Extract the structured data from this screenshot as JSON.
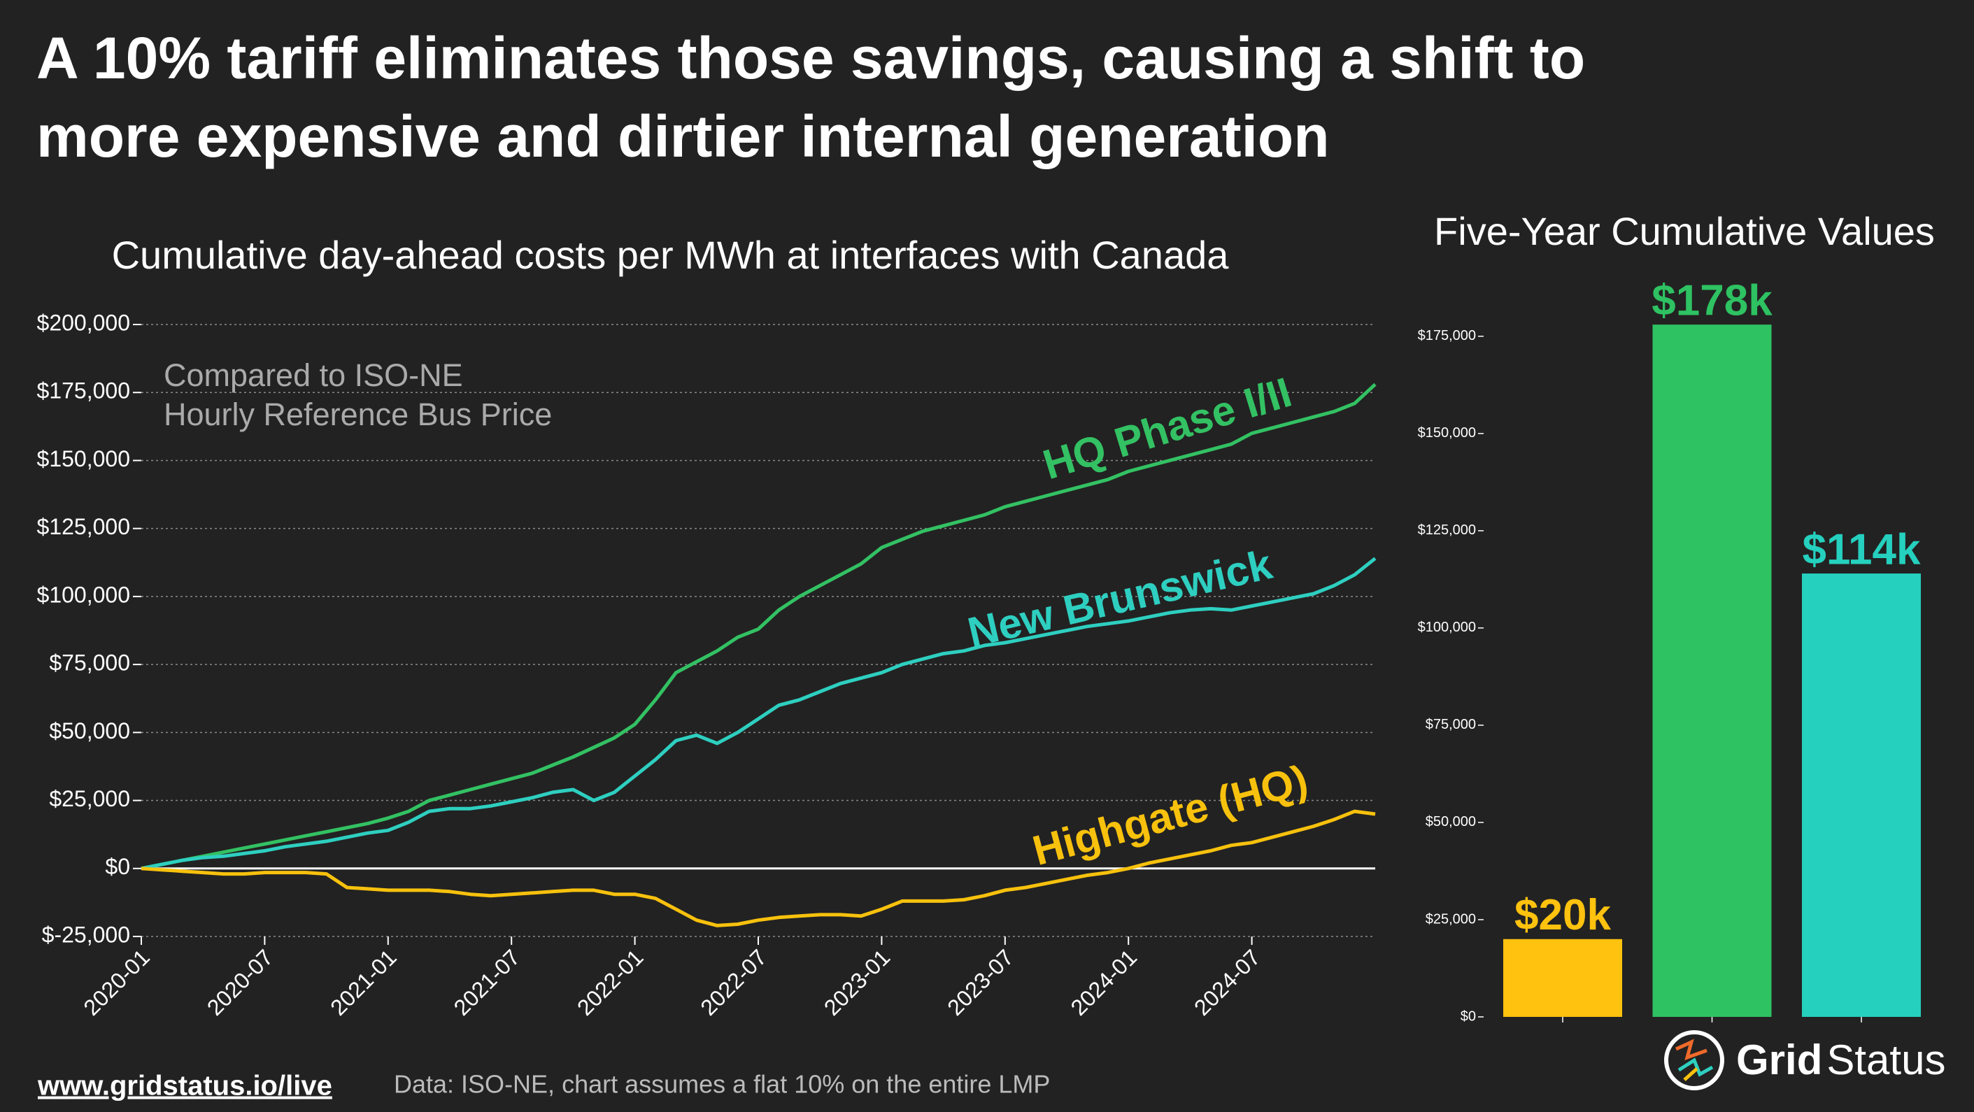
{
  "header": {
    "title": [
      "A 10% tariff eliminates those savings, causing a shift to",
      "more expensive and dirtier internal generation"
    ]
  },
  "chart_data": [
    {
      "type": "line",
      "title": "Cumulative day-ahead costs per MWh at interfaces with Canada",
      "annotation": [
        "Compared to ISO-NE",
        "Hourly Reference Bus Price"
      ],
      "x": [
        "2020-01",
        "2020-02",
        "2020-03",
        "2020-04",
        "2020-05",
        "2020-06",
        "2020-07",
        "2020-08",
        "2020-09",
        "2020-10",
        "2020-11",
        "2020-12",
        "2021-01",
        "2021-02",
        "2021-03",
        "2021-04",
        "2021-05",
        "2021-06",
        "2021-07",
        "2021-08",
        "2021-09",
        "2021-10",
        "2021-11",
        "2021-12",
        "2022-01",
        "2022-02",
        "2022-03",
        "2022-04",
        "2022-05",
        "2022-06",
        "2022-07",
        "2022-08",
        "2022-09",
        "2022-10",
        "2022-11",
        "2022-12",
        "2023-01",
        "2023-02",
        "2023-03",
        "2023-04",
        "2023-05",
        "2023-06",
        "2023-07",
        "2023-08",
        "2023-09",
        "2023-10",
        "2023-11",
        "2023-12",
        "2024-01",
        "2024-02",
        "2024-03",
        "2024-04",
        "2024-05",
        "2024-06",
        "2024-07",
        "2024-08",
        "2024-09",
        "2024-10",
        "2024-11",
        "2024-12",
        "2025-01"
      ],
      "xlim": [
        "2020-01",
        "2025-01"
      ],
      "xticks": [
        "2020-01",
        "2020-07",
        "2021-01",
        "2021-07",
        "2022-01",
        "2022-07",
        "2023-01",
        "2023-07",
        "2024-01",
        "2024-07"
      ],
      "ylim": [
        -25000,
        200000
      ],
      "yticks": [
        {
          "value": -25000,
          "label": "$-25,000"
        },
        {
          "value": 0,
          "label": "$0"
        },
        {
          "value": 25000,
          "label": "$25,000"
        },
        {
          "value": 50000,
          "label": "$50,000"
        },
        {
          "value": 75000,
          "label": "$75,000"
        },
        {
          "value": 100000,
          "label": "$100,000"
        },
        {
          "value": 125000,
          "label": "$125,000"
        },
        {
          "value": 150000,
          "label": "$150,000"
        },
        {
          "value": 175000,
          "label": "$175,000"
        },
        {
          "value": 200000,
          "label": "$200,000"
        }
      ],
      "grid": true,
      "series": [
        {
          "name": "HQ Phase I/II",
          "color": "#33c163",
          "values": [
            0,
            1500,
            3000,
            4500,
            6000,
            7500,
            9000,
            10500,
            12000,
            13500,
            15000,
            16500,
            18500,
            21000,
            25000,
            27000,
            29000,
            31000,
            33000,
            35000,
            38000,
            41000,
            44500,
            48000,
            53000,
            62000,
            72000,
            76000,
            80000,
            85000,
            88000,
            95000,
            100000,
            104000,
            108000,
            112000,
            118000,
            121000,
            124000,
            126000,
            128000,
            130000,
            133000,
            135000,
            137000,
            139000,
            141000,
            143000,
            146000,
            148000,
            150000,
            152000,
            154000,
            156000,
            160000,
            162000,
            164000,
            166000,
            168000,
            171000,
            178000
          ]
        },
        {
          "name": "New Brunswick",
          "color": "#2ecfc0",
          "values": [
            0,
            1500,
            3000,
            4000,
            4500,
            5500,
            6500,
            8000,
            9000,
            10000,
            11500,
            13000,
            14000,
            17000,
            21000,
            22000,
            22000,
            23000,
            24500,
            26000,
            28000,
            29000,
            25000,
            28000,
            34000,
            40000,
            47000,
            49000,
            46000,
            50000,
            55000,
            60000,
            62000,
            65000,
            68000,
            70000,
            72000,
            75000,
            77000,
            79000,
            80000,
            82000,
            83000,
            84500,
            86000,
            87500,
            89000,
            90000,
            91000,
            92500,
            94000,
            95000,
            95500,
            95000,
            96500,
            98000,
            99500,
            101000,
            104000,
            108000,
            114000
          ]
        },
        {
          "name": "Highgate (HQ)",
          "color": "#f7c10d",
          "values": [
            0,
            -500,
            -1000,
            -1500,
            -2000,
            -2000,
            -1500,
            -1500,
            -1500,
            -2000,
            -7000,
            -7500,
            -8000,
            -8000,
            -8000,
            -8500,
            -9500,
            -10000,
            -9500,
            -9000,
            -8500,
            -8000,
            -8000,
            -9500,
            -9500,
            -11000,
            -15000,
            -19000,
            -21000,
            -20500,
            -19000,
            -18000,
            -17500,
            -17000,
            -17000,
            -17500,
            -15000,
            -12000,
            -12000,
            -12000,
            -11500,
            -10000,
            -8000,
            -7000,
            -5500,
            -4000,
            -2500,
            -1500,
            0,
            2000,
            3500,
            5000,
            6500,
            8500,
            9500,
            11500,
            13500,
            15500,
            18000,
            21000,
            20000
          ]
        }
      ]
    },
    {
      "type": "bar",
      "title": "Five-Year Cumulative Values",
      "categories": [
        null,
        null,
        null
      ],
      "values": [
        20000,
        178000,
        114000
      ],
      "value_labels": [
        "$20k",
        "$178k",
        "$114k"
      ],
      "colors": [
        "#ffc20e",
        "#2ec262",
        "#25d0be"
      ],
      "ylim": [
        0,
        180000
      ],
      "yticks": [
        {
          "value": 0,
          "label": "$0"
        },
        {
          "value": 25000,
          "label": "$25,000"
        },
        {
          "value": 50000,
          "label": "$50,000"
        },
        {
          "value": 75000,
          "label": "$75,000"
        },
        {
          "value": 100000,
          "label": "$100,000"
        },
        {
          "value": 125000,
          "label": "$125,000"
        },
        {
          "value": 150000,
          "label": "$150,000"
        },
        {
          "value": 175000,
          "label": "$175,000"
        }
      ]
    }
  ],
  "footer": {
    "link": "www.gridstatus.io/live",
    "source": "Data: ISO-NE, chart assumes a flat 10% on the entire LMP"
  },
  "logo": {
    "bold": "Grid",
    "regular": "Status"
  }
}
